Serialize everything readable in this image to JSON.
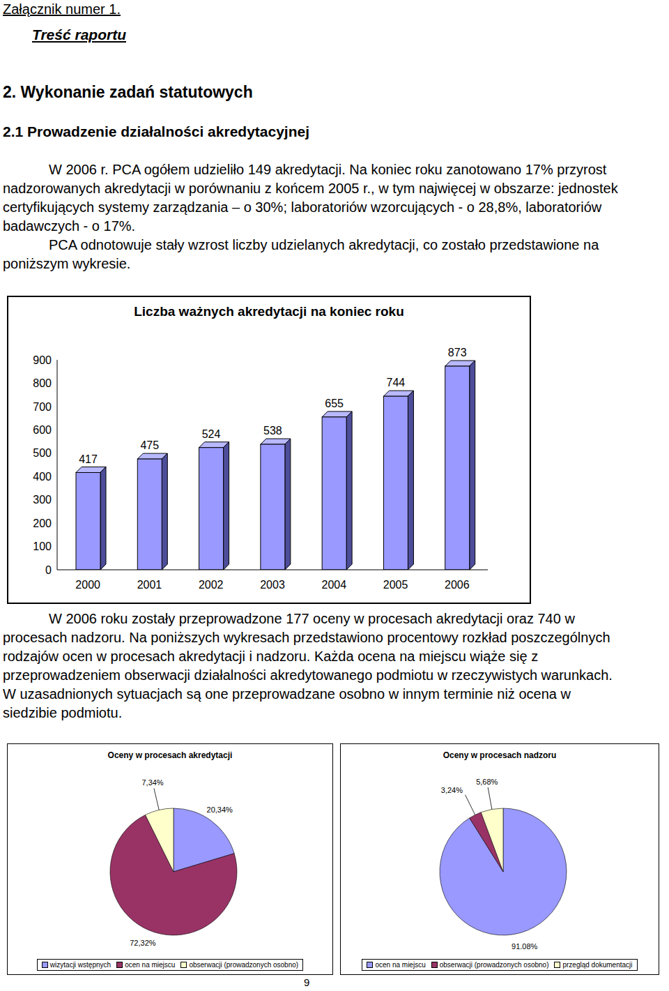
{
  "header": {
    "attachment": "Załącznik numer 1.",
    "subtitle": "Treść raportu"
  },
  "section": {
    "title": "2. Wykonanie zadań statutowych",
    "subsection": "2.1 Prowadzenie działalności akredytacyjnej"
  },
  "paragraphs_before": [
    "W 2006 r. PCA ogółem udzieliło 149 akredytacji. Na koniec roku zanotowano 17% przyrost nadzorowanych akredytacji w porównaniu z końcem 2005 r., w tym najwięcej w obszarze: jednostek certyfikujących systemy zarządzania – o 30%; laboratoriów wzorcujących - o 28,8%, laboratoriów badawczych - o 17%.",
    "PCA odnotowuje stały wzrost liczby udzielanych akredytacji, co zostało przedstawione na poniższym wykresie."
  ],
  "chart_data": [
    {
      "type": "bar",
      "title": "Liczba ważnych akredytacji na koniec roku",
      "categories": [
        "2000",
        "2001",
        "2002",
        "2003",
        "2004",
        "2005",
        "2006"
      ],
      "values": [
        417,
        475,
        524,
        538,
        655,
        744,
        873
      ],
      "color": "#9999ff",
      "ylim": [
        0,
        900
      ],
      "yticks": [
        0,
        100,
        200,
        300,
        400,
        500,
        600,
        700,
        800,
        900
      ],
      "data_labels": true,
      "grid": false
    },
    {
      "type": "pie",
      "title": "Oceny w procesach akredytacji",
      "categories": [
        "wizytacji wstępnych",
        "ocen na miejscu",
        "obserwacji (prowadzonych osobno)"
      ],
      "values": [
        20.34,
        72.32,
        7.34
      ],
      "value_labels": [
        "20,34%",
        "72,32%",
        "7,34%"
      ],
      "colors": [
        "#9999ff",
        "#993366",
        "#ffffcc"
      ],
      "data_labels": true,
      "legend": "bottom"
    },
    {
      "type": "pie",
      "title": "Oceny w procesach nadzoru",
      "categories": [
        "ocen na miejscu",
        "obserwacji (prowadzonych osobno)",
        "przegląd dokumentacji"
      ],
      "values": [
        91.08,
        3.24,
        5.68
      ],
      "value_labels": [
        "91,08%",
        "3,24%",
        "5,68%"
      ],
      "colors": [
        "#9999ff",
        "#993366",
        "#ffffcc"
      ],
      "data_labels": true,
      "legend": "bottom"
    }
  ],
  "paragraphs_after": [
    "W 2006 roku zostały przeprowadzone 177 oceny w procesach akredytacji oraz 740 w procesach nadzoru. Na poniższych wykresach przedstawiono procentowy rozkład poszczególnych rodzajów ocen w procesach akredytacji i nadzoru. Każda ocena na miejscu wiąże się z przeprowadzeniem obserwacji działalności akredytowanego podmiotu w rzeczywistych warunkach. W uzasadnionych sytuacjach są one przeprowadzane osobno w innym terminie niż ocena w siedzibie podmiotu."
  ],
  "page_number": "9"
}
